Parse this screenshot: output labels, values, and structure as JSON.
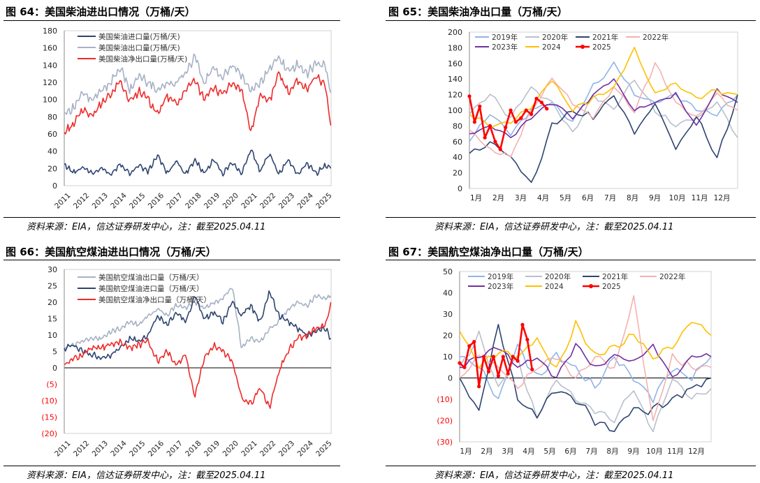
{
  "sources": {
    "left_top": "资料来源：EIA，信达证券研发中心，注：截至2025.04.11",
    "right_top": "资料来源：EIA，信达证券研发中心，注：截至2025.04.11",
    "left_bottom": "资料来源：EIA，信达证券研发中心，注：截至2025.04.11",
    "right_bottom": "资料来源：EIA，信达证券研发中心，注：截至2025.04.11"
  },
  "colors": {
    "navy": "#2e4470",
    "lightgray": "#a7b1c4",
    "red": "#ee2a2a",
    "c2019": "#8fb4ea",
    "c2020": "#b8c0cc",
    "c2021": "#2e4470",
    "c2022": "#f5b1b1",
    "c2023": "#7030a0",
    "c2024": "#ffc000",
    "c2025": "#ff0000"
  },
  "chart_data": [
    {
      "figure": "图 64：美国柴油进出口情况（万桶/天）",
      "type": "line",
      "title": "图 64：美国柴油进出口情况（万桶/天）",
      "x_tick_labels": [
        "2011",
        "2012",
        "2013",
        "2014",
        "2015",
        "2016",
        "2017",
        "2018",
        "2019",
        "2020",
        "2021",
        "2022",
        "2023",
        "2024",
        "2025"
      ],
      "xlim": [
        2011.0,
        2025.3
      ],
      "ylim": [
        0,
        180
      ],
      "y_tick_labels": [
        "0",
        "20",
        "40",
        "60",
        "80",
        "100",
        "120",
        "140",
        "160",
        "180"
      ],
      "legend": "top-left",
      "series": [
        {
          "name": "美国柴油进口量(万桶/天)",
          "color_key": "navy",
          "x": [
            2011.0,
            2011.5,
            2012.0,
            2012.5,
            2013.0,
            2013.5,
            2014.0,
            2014.5,
            2015.0,
            2015.5,
            2016.0,
            2016.5,
            2017.0,
            2017.5,
            2018.0,
            2018.5,
            2019.0,
            2019.5,
            2020.0,
            2020.5,
            2021.0,
            2021.5,
            2022.0,
            2022.5,
            2023.0,
            2023.5,
            2024.0,
            2024.5,
            2025.0,
            2025.28
          ],
          "values": [
            25,
            15,
            22,
            14,
            20,
            13,
            26,
            14,
            24,
            16,
            36,
            14,
            28,
            14,
            30,
            14,
            30,
            14,
            28,
            14,
            42,
            16,
            38,
            14,
            30,
            13,
            26,
            14,
            24,
            20
          ]
        },
        {
          "name": "美国柴油出口量(万桶/天)",
          "color_key": "lightgray",
          "x": [
            2011.0,
            2011.5,
            2012.0,
            2012.5,
            2013.0,
            2013.5,
            2014.0,
            2014.5,
            2015.0,
            2015.5,
            2016.0,
            2016.5,
            2017.0,
            2017.5,
            2018.0,
            2018.5,
            2019.0,
            2019.5,
            2020.0,
            2020.5,
            2021.0,
            2021.5,
            2022.0,
            2022.5,
            2023.0,
            2023.5,
            2024.0,
            2024.5,
            2025.0,
            2025.28
          ],
          "values": [
            85,
            90,
            108,
            98,
            112,
            120,
            138,
            110,
            128,
            120,
            112,
            118,
            120,
            132,
            150,
            118,
            138,
            125,
            140,
            128,
            110,
            120,
            135,
            150,
            132,
            140,
            130,
            142,
            138,
            108
          ]
        },
        {
          "name": "美国柴油净出口量(万桶/天)",
          "color_key": "red",
          "x": [
            2011.0,
            2011.5,
            2012.0,
            2012.5,
            2013.0,
            2013.5,
            2014.0,
            2014.5,
            2015.0,
            2015.5,
            2016.0,
            2016.5,
            2017.0,
            2017.5,
            2018.0,
            2018.5,
            2019.0,
            2019.5,
            2020.0,
            2020.5,
            2021.0,
            2021.5,
            2022.0,
            2022.5,
            2023.0,
            2023.5,
            2024.0,
            2024.5,
            2025.0,
            2025.28
          ],
          "values": [
            62,
            72,
            88,
            82,
            95,
            105,
            122,
            98,
            110,
            100,
            82,
            104,
            95,
            110,
            122,
            102,
            112,
            108,
            118,
            112,
            62,
            104,
            98,
            132,
            108,
            122,
            112,
            128,
            115,
            70
          ]
        }
      ]
    },
    {
      "figure": "图 65：美国柴油净出口量（万桶/天）",
      "type": "line",
      "title": "图 65：美国柴油净出口量（万桶/天）",
      "x_tick_labels": [
        "1月",
        "2月",
        "3月",
        "4月",
        "5月",
        "6月",
        "7月",
        "8月",
        "9月",
        "10月",
        "11月",
        "12月"
      ],
      "xlim": [
        0,
        52
      ],
      "ylim": [
        0,
        200
      ],
      "y_tick_labels": [
        "0",
        "20",
        "40",
        "60",
        "80",
        "100",
        "120",
        "140",
        "160",
        "180",
        "200"
      ],
      "legend": "top",
      "series": [
        {
          "name": "2019年",
          "color_key": "c2019",
          "x": [
            0,
            4,
            8,
            12,
            16,
            20,
            24,
            28,
            32,
            36,
            40,
            44,
            48,
            52
          ],
          "values": [
            60,
            95,
            70,
            100,
            110,
            85,
            130,
            160,
            120,
            110,
            120,
            100,
            95,
            120
          ]
        },
        {
          "name": "2020年",
          "color_key": "c2020",
          "x": [
            0,
            4,
            8,
            12,
            16,
            20,
            24,
            28,
            32,
            36,
            40,
            44,
            48,
            52
          ],
          "values": [
            95,
            120,
            90,
            130,
            110,
            70,
            120,
            100,
            140,
            100,
            80,
            90,
            110,
            65
          ]
        },
        {
          "name": "2021年",
          "color_key": "c2021",
          "x": [
            0,
            4,
            8,
            12,
            16,
            20,
            24,
            28,
            32,
            36,
            40,
            44,
            48,
            52
          ],
          "values": [
            45,
            60,
            40,
            5,
            80,
            100,
            90,
            120,
            70,
            110,
            50,
            90,
            40,
            120
          ]
        },
        {
          "name": "2022年",
          "color_key": "c2022",
          "x": [
            0,
            4,
            8,
            12,
            16,
            20,
            24,
            28,
            32,
            36,
            40,
            44,
            48,
            52
          ],
          "values": [
            75,
            50,
            40,
            100,
            140,
            110,
            90,
            130,
            100,
            160,
            110,
            90,
            120,
            100
          ]
        },
        {
          "name": "2023年",
          "color_key": "c2023",
          "x": [
            0,
            4,
            8,
            12,
            16,
            20,
            24,
            28,
            32,
            36,
            40,
            44,
            48,
            52
          ],
          "values": [
            70,
            80,
            65,
            90,
            110,
            90,
            120,
            140,
            100,
            110,
            120,
            80,
            125,
            110
          ]
        },
        {
          "name": "2024",
          "color_key": "c2024",
          "x": [
            0,
            4,
            8,
            12,
            16,
            20,
            24,
            28,
            32,
            36,
            40,
            44,
            48,
            52
          ],
          "values": [
            95,
            80,
            85,
            105,
            140,
            100,
            115,
            130,
            178,
            120,
            135,
            115,
            125,
            120
          ]
        },
        {
          "name": "2025",
          "color_key": "c2025",
          "marker": "circle",
          "x": [
            0,
            1,
            2,
            3,
            4,
            5,
            6,
            7,
            8,
            9,
            10,
            11,
            12,
            13,
            14,
            15
          ],
          "values": [
            118,
            85,
            105,
            65,
            80,
            60,
            50,
            78,
            100,
            85,
            90,
            100,
            95,
            115,
            110,
            102
          ]
        }
      ]
    },
    {
      "figure": "图 66：美国航空煤油进出口情况（万桶/天）",
      "type": "line",
      "title": "图 66：美国航空煤油进出口情况（万桶/天）",
      "x_tick_labels": [
        "2011",
        "2012",
        "2013",
        "2014",
        "2015",
        "2016",
        "2017",
        "2018",
        "2019",
        "2020",
        "2021",
        "2022",
        "2023",
        "2024",
        "2025"
      ],
      "xlim": [
        2011.0,
        2025.3
      ],
      "ylim": [
        -20,
        30
      ],
      "y_tick_labels": [
        "(20)",
        "(15)",
        "(10)",
        "(5)",
        "0",
        "5",
        "10",
        "15",
        "20",
        "25",
        "30"
      ],
      "legend": "top-left",
      "series": [
        {
          "name": "美国航空煤油出口量（万桶/天）",
          "color_key": "lightgray",
          "x": [
            2011.0,
            2011.5,
            2012.0,
            2012.5,
            2013.0,
            2013.5,
            2014.0,
            2014.5,
            2015.0,
            2015.5,
            2016.0,
            2016.5,
            2017.0,
            2017.5,
            2018.0,
            2018.5,
            2019.0,
            2019.5,
            2020.0,
            2020.5,
            2021.0,
            2021.5,
            2022.0,
            2022.5,
            2023.0,
            2023.5,
            2024.0,
            2024.5,
            2025.0,
            2025.28
          ],
          "values": [
            6,
            7,
            8,
            9,
            9,
            11,
            12,
            14,
            13,
            16,
            18,
            16,
            19,
            18,
            20,
            18,
            20,
            21,
            25,
            6,
            9,
            8,
            12,
            14,
            18,
            20,
            19,
            22,
            21,
            22
          ]
        },
        {
          "name": "美国航空煤油进口量（万桶/天）",
          "color_key": "navy",
          "x": [
            2011.0,
            2011.5,
            2012.0,
            2012.5,
            2013.0,
            2013.5,
            2014.0,
            2014.5,
            2015.0,
            2015.5,
            2016.0,
            2016.5,
            2017.0,
            2017.5,
            2018.0,
            2018.5,
            2019.0,
            2019.5,
            2020.0,
            2020.5,
            2021.0,
            2021.5,
            2022.0,
            2022.5,
            2023.0,
            2023.5,
            2024.0,
            2024.5,
            2025.0,
            2025.28
          ],
          "values": [
            6,
            7,
            5,
            4,
            3,
            4,
            6,
            9,
            8,
            10,
            16,
            13,
            17,
            14,
            22,
            15,
            17,
            14,
            20,
            16,
            19,
            14,
            23,
            16,
            14,
            12,
            10,
            11,
            12,
            9
          ]
        },
        {
          "name": "美国航空煤油净出口量（万桶/天）",
          "color_key": "red",
          "x": [
            2011.0,
            2011.5,
            2012.0,
            2012.5,
            2013.0,
            2013.5,
            2014.0,
            2014.5,
            2015.0,
            2015.5,
            2016.0,
            2016.5,
            2017.0,
            2017.5,
            2018.0,
            2018.5,
            2019.0,
            2019.5,
            2020.0,
            2020.5,
            2021.0,
            2021.5,
            2022.0,
            2022.5,
            2023.0,
            2023.5,
            2024.0,
            2024.5,
            2025.0,
            2025.28
          ],
          "values": [
            1,
            3,
            4,
            6,
            6,
            7,
            8,
            6,
            7,
            8,
            2,
            5,
            1,
            4,
            -9,
            3,
            7,
            5,
            2,
            -9,
            -11,
            -6,
            -12,
            -1,
            5,
            9,
            10,
            12,
            13,
            20
          ]
        }
      ]
    },
    {
      "figure": "图 67：美国航空煤油净出口量（万桶/天）",
      "type": "line",
      "title": "图 67：美国航空煤油净出口量（万桶/天）",
      "x_tick_labels": [
        "1月",
        "2月",
        "3月",
        "4月",
        "5月",
        "6月",
        "7月",
        "8月",
        "9月",
        "10月",
        "11月",
        "12月"
      ],
      "xlim": [
        0,
        52
      ],
      "ylim": [
        -30,
        50
      ],
      "y_tick_labels": [
        "(30)",
        "(20)",
        "(10)",
        "0",
        "10",
        "20",
        "30",
        "40",
        "50"
      ],
      "legend": "top",
      "series": [
        {
          "name": "2019年",
          "color_key": "c2019",
          "x": [
            0,
            4,
            8,
            12,
            16,
            20,
            24,
            28,
            32,
            36,
            40,
            44,
            48,
            52
          ],
          "values": [
            10,
            5,
            -10,
            15,
            0,
            10,
            5,
            -5,
            10,
            0,
            -10,
            5,
            0,
            10
          ]
        },
        {
          "name": "2020年",
          "color_key": "c2020",
          "x": [
            0,
            4,
            8,
            12,
            16,
            20,
            24,
            28,
            32,
            36,
            40,
            44,
            48,
            52
          ],
          "values": [
            5,
            20,
            -5,
            10,
            -20,
            0,
            -10,
            -15,
            -20,
            -5,
            -25,
            0,
            -10,
            -5
          ]
        },
        {
          "name": "2021年",
          "color_key": "c2021",
          "x": [
            0,
            4,
            8,
            12,
            16,
            20,
            24,
            28,
            32,
            36,
            40,
            44,
            48,
            52
          ],
          "values": [
            0,
            -15,
            25,
            -10,
            -18,
            -5,
            -10,
            -20,
            -25,
            -15,
            -15,
            -10,
            -5,
            0
          ]
        },
        {
          "name": "2022年",
          "color_key": "c2022",
          "x": [
            0,
            4,
            8,
            12,
            16,
            20,
            24,
            28,
            32,
            36,
            40,
            44,
            48,
            52
          ],
          "values": [
            0,
            10,
            5,
            -5,
            5,
            10,
            0,
            10,
            5,
            38,
            -20,
            10,
            5,
            5
          ]
        },
        {
          "name": "2023年",
          "color_key": "c2023",
          "x": [
            0,
            4,
            8,
            12,
            16,
            20,
            24,
            28,
            32,
            36,
            40,
            44,
            48,
            52
          ],
          "values": [
            5,
            10,
            15,
            5,
            10,
            0,
            15,
            5,
            10,
            8,
            15,
            0,
            10,
            10
          ]
        },
        {
          "name": "2024",
          "color_key": "c2024",
          "x": [
            0,
            4,
            8,
            12,
            16,
            20,
            24,
            28,
            32,
            36,
            40,
            44,
            48,
            52
          ],
          "values": [
            22,
            5,
            12,
            10,
            18,
            5,
            25,
            10,
            15,
            20,
            10,
            15,
            28,
            20
          ]
        },
        {
          "name": "2025",
          "color_key": "c2025",
          "marker": "circle",
          "x": [
            0,
            1,
            2,
            3,
            4,
            5,
            6,
            7,
            8,
            9,
            10,
            11,
            12,
            13,
            14,
            15
          ],
          "values": [
            7,
            5,
            15,
            17,
            -4,
            10,
            3,
            10,
            1,
            10,
            2,
            10,
            8,
            25,
            18,
            4
          ]
        }
      ]
    }
  ]
}
